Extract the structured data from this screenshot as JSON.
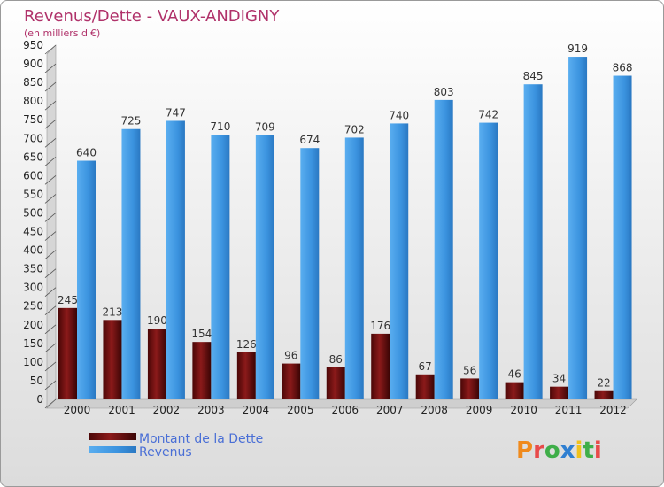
{
  "chart_data": {
    "type": "bar",
    "title": "Revenus/Dette - VAUX-ANDIGNY",
    "subtitle": "(en milliers d'€)",
    "categories": [
      "2000",
      "2001",
      "2002",
      "2003",
      "2004",
      "2005",
      "2006",
      "2007",
      "2008",
      "2009",
      "2010",
      "2011",
      "2012"
    ],
    "series": [
      {
        "name": "Montant de la Dette",
        "color": "#6b0f0f",
        "values": [
          245,
          213,
          190,
          154,
          126,
          96,
          86,
          176,
          67,
          56,
          46,
          34,
          22
        ]
      },
      {
        "name": "Revenus",
        "color": "#3f96e0",
        "values": [
          640,
          725,
          747,
          710,
          709,
          674,
          702,
          740,
          803,
          742,
          845,
          919,
          868
        ]
      }
    ],
    "ylim": [
      0,
      950
    ],
    "yticks": [
      "0",
      "50",
      "100",
      "150",
      "200",
      "250",
      "300",
      "350",
      "400",
      "450",
      "500",
      "550",
      "600",
      "650",
      "700",
      "750",
      "800",
      "850",
      "900",
      "950"
    ],
    "grid": false,
    "legend_position": "bottom-left"
  },
  "brand": {
    "text": "Proxiti",
    "letters": [
      "P",
      "r",
      "o",
      "x",
      "i",
      "t",
      "i"
    ],
    "colors": [
      "#f08a1c",
      "#e84b4b",
      "#3fae49",
      "#2f7fd1",
      "#f0c21c",
      "#3fae49",
      "#e84b4b"
    ]
  }
}
